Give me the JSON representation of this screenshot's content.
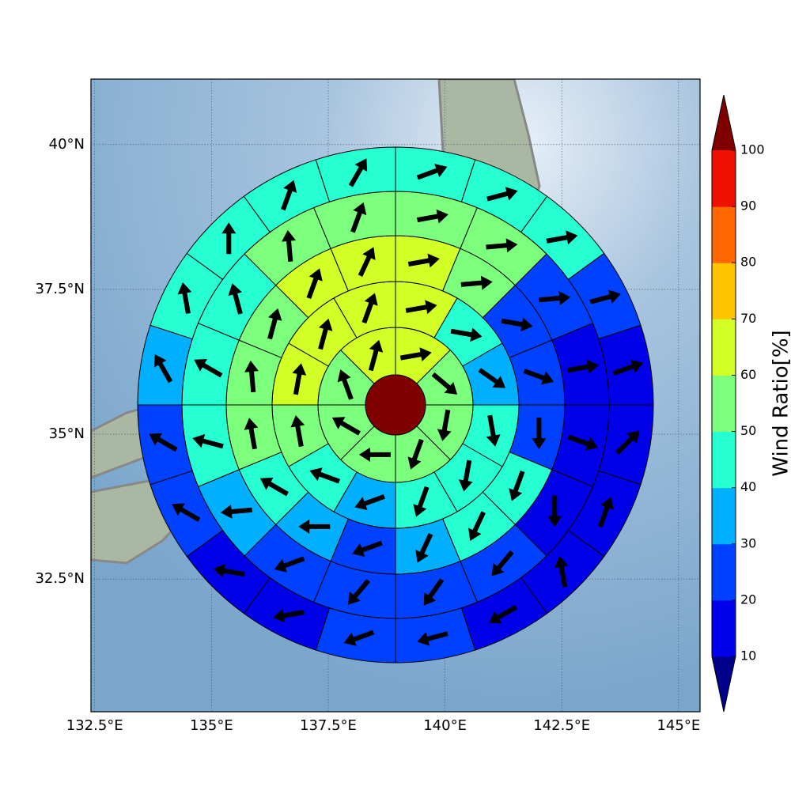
{
  "chart_data": {
    "type": "polar-grid-map",
    "xlim": [
      132.42,
      145.46
    ],
    "ylim": [
      30.21,
      41.13
    ],
    "xticks": [
      {
        "value": 132.5,
        "label": "132.5°E"
      },
      {
        "value": 135,
        "label": "135°E"
      },
      {
        "value": 137.5,
        "label": "137.5°E"
      },
      {
        "value": 140,
        "label": "140°E"
      },
      {
        "value": 142.5,
        "label": "142.5°E"
      },
      {
        "value": 145,
        "label": "145°E"
      }
    ],
    "yticks": [
      {
        "value": 32.5,
        "label": "32.5°N"
      },
      {
        "value": 35,
        "label": "35°N"
      },
      {
        "value": 37.5,
        "label": "37.5°N"
      },
      {
        "value": 40,
        "label": "40°N"
      }
    ],
    "grid": true,
    "rings": [
      {
        "values": [
          65,
          55,
          55,
          55,
          55,
          55,
          55,
          65
        ],
        "directions": [
          80,
          130,
          190,
          200,
          270,
          300,
          340,
          15
        ]
      },
      {
        "values": [
          65,
          45,
          35,
          45,
          45,
          45,
          35,
          45,
          55,
          65,
          65,
          65
        ],
        "directions": [
          80,
          100,
          125,
          170,
          190,
          200,
          250,
          290,
          350,
          10,
          15,
          20
        ]
      },
      {
        "values": [
          65,
          55,
          25,
          25,
          25,
          45,
          45,
          35,
          25,
          35,
          45,
          55,
          55,
          55,
          65,
          65
        ],
        "directions": [
          80,
          85,
          100,
          110,
          180,
          200,
          205,
          205,
          250,
          270,
          300,
          350,
          355,
          15,
          20,
          25
        ]
      },
      {
        "values": [
          55,
          55,
          25,
          15,
          15,
          15,
          25,
          25,
          25,
          25,
          35,
          45,
          45,
          45,
          55,
          55
        ],
        "directions": [
          80,
          85,
          85,
          80,
          110,
          180,
          220,
          215,
          220,
          250,
          265,
          285,
          300,
          345,
          355,
          20
        ]
      },
      {
        "values": [
          45,
          45,
          45,
          25,
          15,
          15,
          15,
          15,
          15,
          25,
          25,
          15,
          15,
          25,
          25,
          35,
          45,
          45,
          45,
          45
        ],
        "directions": [
          70,
          75,
          80,
          75,
          70,
          45,
          20,
          350,
          240,
          255,
          250,
          260,
          280,
          300,
          300,
          330,
          350,
          0,
          20,
          30
        ]
      }
    ],
    "colorbar": {
      "label": "Wind Ratio[%]",
      "ticks": [
        10,
        20,
        30,
        40,
        50,
        60,
        70,
        80,
        90,
        100
      ],
      "colors": [
        "#0000e8",
        "#0040ff",
        "#00b0ff",
        "#26ffd2",
        "#7cff7c",
        "#d2ff26",
        "#ffc400",
        "#ff6800",
        "#ee1000"
      ],
      "under_color": "#00008b",
      "over_color": "#800000"
    }
  }
}
